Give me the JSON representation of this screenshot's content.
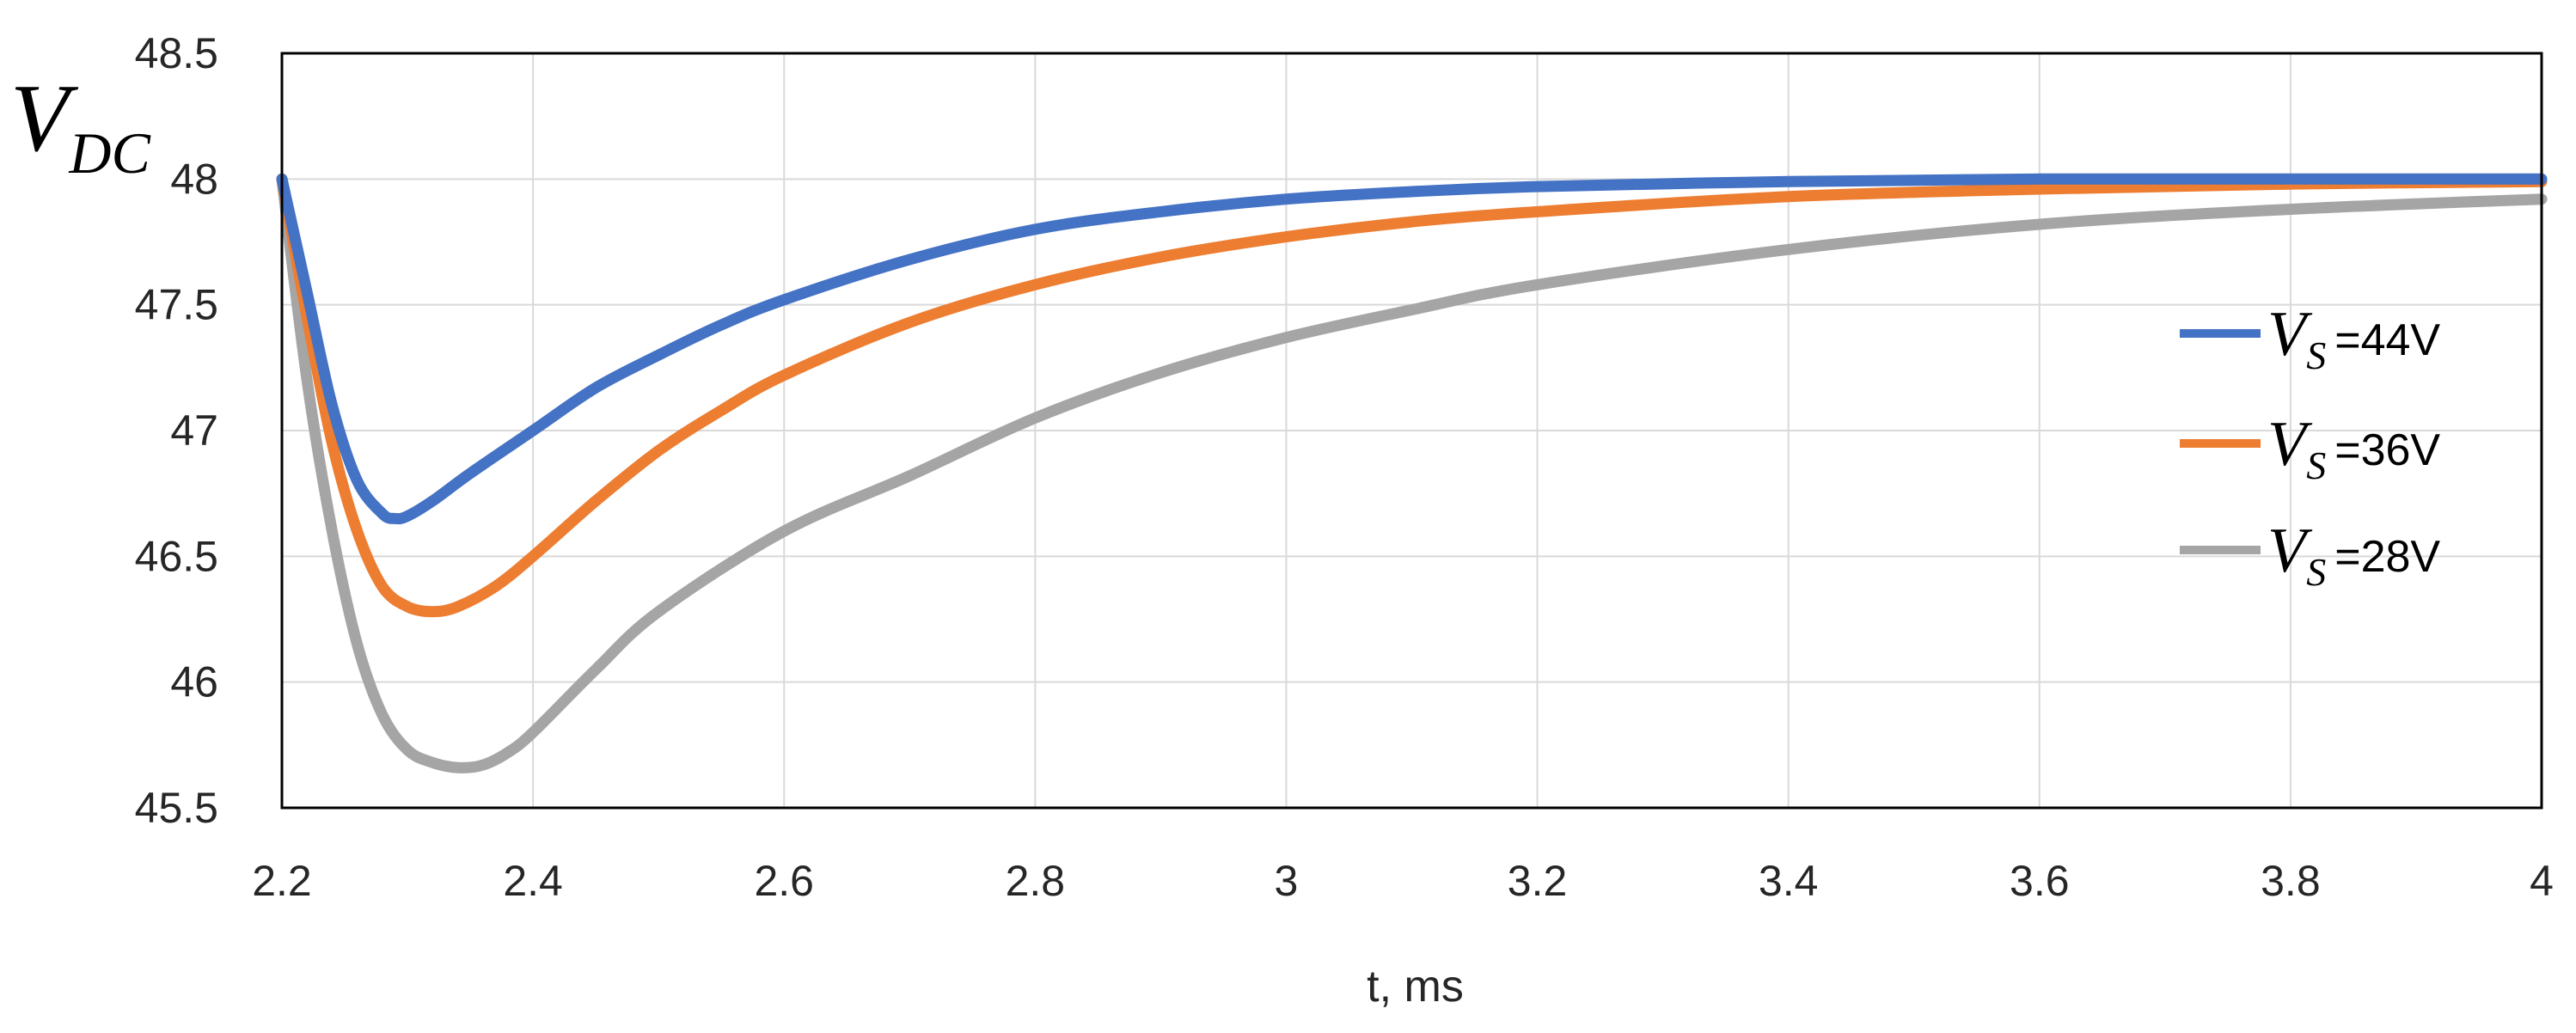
{
  "chart_data": {
    "type": "line",
    "title": "",
    "xlabel": "t, ms",
    "ylabel": {
      "main": "V",
      "sub": "DC"
    },
    "xlim": [
      2.2,
      4.0
    ],
    "ylim": [
      45.5,
      48.5
    ],
    "xticks": [
      2.2,
      2.4,
      2.6,
      2.8,
      3.0,
      3.2,
      3.4,
      3.6,
      3.8,
      4.0
    ],
    "xtick_labels": [
      "2.2",
      "2.4",
      "2.6",
      "2.8",
      "3",
      "3.2",
      "3.4",
      "3.6",
      "3.8",
      "4"
    ],
    "yticks": [
      45.5,
      46.0,
      46.5,
      47.0,
      47.5,
      48.0,
      48.5
    ],
    "ytick_labels": [
      "45.5",
      "46",
      "46.5",
      "47",
      "47.5",
      "48",
      "48.5"
    ],
    "grid": true,
    "legend_position": "right",
    "series": [
      {
        "name": "VS=44V",
        "label_symbol": "V",
        "label_sub": "S",
        "label_value": "=44V",
        "color": "#4472C4",
        "x": [
          2.2,
          2.22,
          2.24,
          2.26,
          2.28,
          2.29,
          2.3,
          2.32,
          2.35,
          2.4,
          2.45,
          2.5,
          2.55,
          2.6,
          2.7,
          2.8,
          2.9,
          3.0,
          3.1,
          3.2,
          3.4,
          3.6,
          3.8,
          4.0
        ],
        "y": [
          48.0,
          47.55,
          47.1,
          46.8,
          46.67,
          46.65,
          46.66,
          46.72,
          46.83,
          47.0,
          47.17,
          47.3,
          47.42,
          47.52,
          47.68,
          47.8,
          47.87,
          47.92,
          47.95,
          47.97,
          47.99,
          48.0,
          48.0,
          48.0
        ]
      },
      {
        "name": "VS=36V",
        "label_symbol": "V",
        "label_sub": "S",
        "label_value": "=36V",
        "color": "#ED7D31",
        "x": [
          2.2,
          2.22,
          2.24,
          2.26,
          2.28,
          2.3,
          2.32,
          2.34,
          2.37,
          2.4,
          2.45,
          2.5,
          2.55,
          2.6,
          2.7,
          2.8,
          2.9,
          3.0,
          3.1,
          3.2,
          3.4,
          3.6,
          3.8,
          4.0
        ],
        "y": [
          48.0,
          47.45,
          46.95,
          46.6,
          46.38,
          46.3,
          46.28,
          46.3,
          46.38,
          46.5,
          46.72,
          46.92,
          47.08,
          47.22,
          47.43,
          47.58,
          47.69,
          47.77,
          47.83,
          47.87,
          47.93,
          47.96,
          47.98,
          47.99
        ]
      },
      {
        "name": "VS=28V",
        "label_symbol": "V",
        "label_sub": "S",
        "label_value": "=28V",
        "color": "#A5A5A5",
        "x": [
          2.2,
          2.22,
          2.24,
          2.26,
          2.28,
          2.3,
          2.32,
          2.34,
          2.36,
          2.38,
          2.4,
          2.45,
          2.5,
          2.6,
          2.7,
          2.8,
          2.9,
          3.0,
          3.1,
          3.2,
          3.4,
          3.6,
          3.8,
          4.0
        ],
        "y": [
          48.0,
          47.2,
          46.6,
          46.15,
          45.87,
          45.73,
          45.68,
          45.66,
          45.67,
          45.72,
          45.8,
          46.05,
          46.28,
          46.6,
          46.82,
          47.05,
          47.23,
          47.37,
          47.48,
          47.58,
          47.72,
          47.82,
          47.88,
          47.92
        ]
      }
    ]
  }
}
